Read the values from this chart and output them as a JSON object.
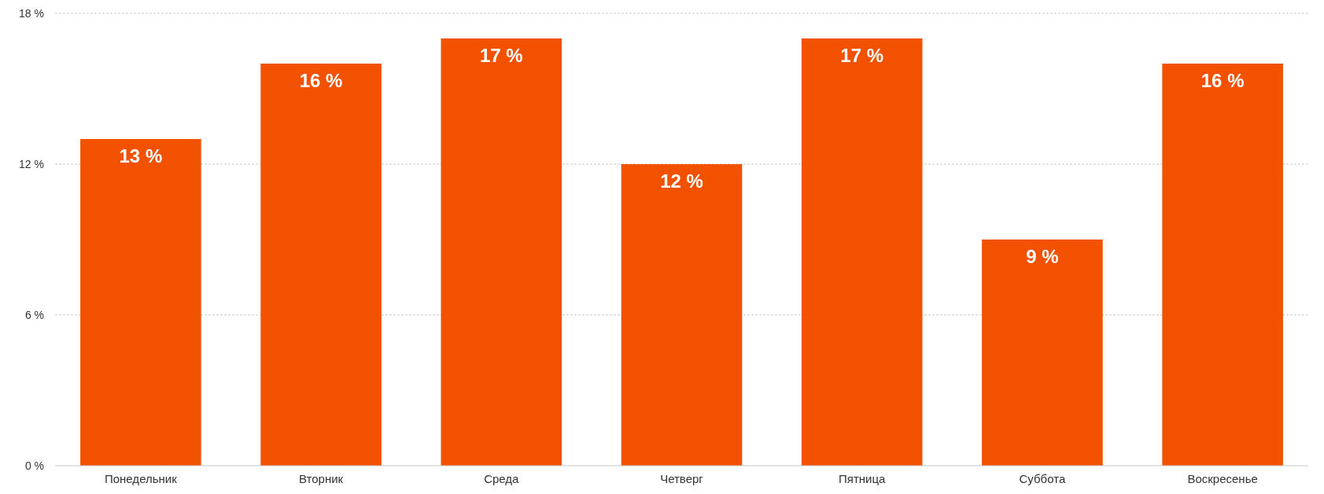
{
  "chart_data": {
    "type": "bar",
    "categories": [
      "Понедельник",
      "Вторник",
      "Среда",
      "Четверг",
      "Пятница",
      "Суббота",
      "Воскресенье"
    ],
    "values": [
      13,
      16,
      17,
      12,
      17,
      9,
      16
    ],
    "color": "#f25100",
    "value_labels": [
      "13 %",
      "16 %",
      "17 %",
      "12 %",
      "17 %",
      "9 %",
      "16 %"
    ],
    "ylim": [
      0,
      18
    ],
    "yticks": [
      {
        "value": 0,
        "label": "0 %"
      },
      {
        "value": 6,
        "label": "6 %"
      },
      {
        "value": 12,
        "label": "12 %"
      },
      {
        "value": 18,
        "label": "18 %"
      }
    ],
    "grid": "y"
  }
}
